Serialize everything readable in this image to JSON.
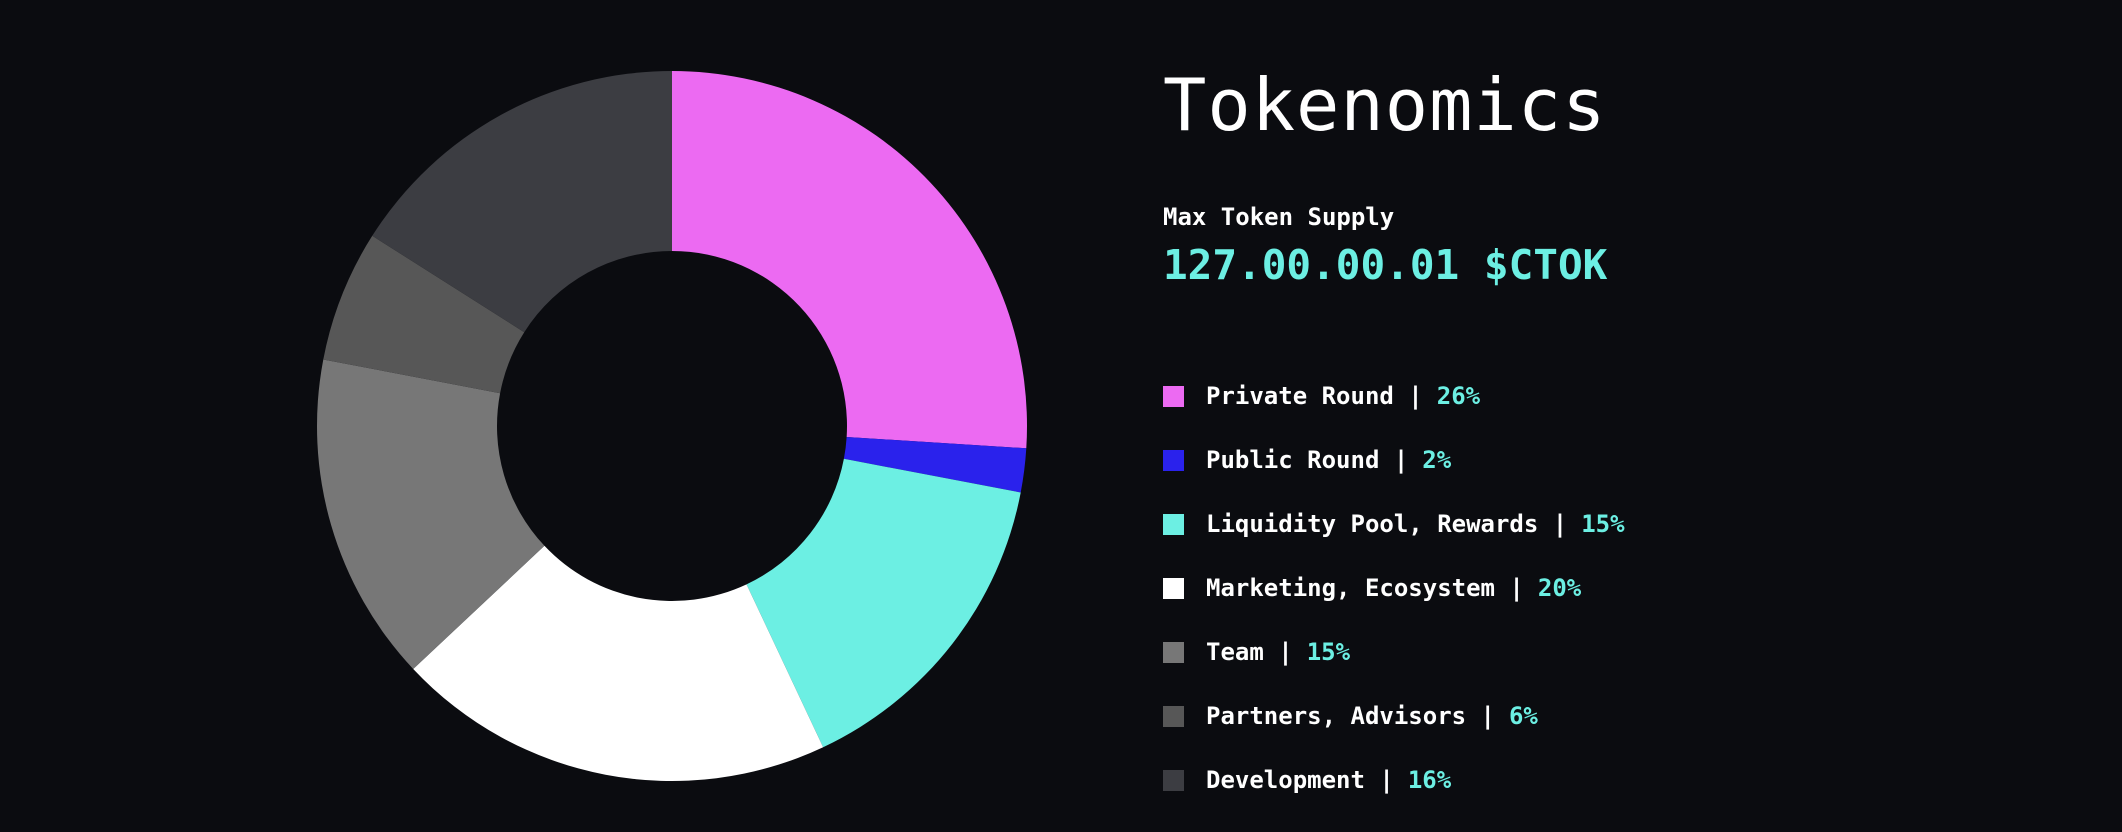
{
  "title": "Tokenomics",
  "supply": {
    "label": "Max Token Supply",
    "value": "127.00.00.01 $CTOK"
  },
  "colors": {
    "background": "#0b0c10",
    "accent": "#6cefe3"
  },
  "chart_data": {
    "type": "pie",
    "donut": true,
    "slices": [
      {
        "name": "Private Round",
        "value": 26,
        "color": "#ec6af2"
      },
      {
        "name": "Public Round",
        "value": 2,
        "color": "#2a22ec"
      },
      {
        "name": "Liquidity Pool, Rewards",
        "value": 15,
        "color": "#6cefe3"
      },
      {
        "name": "Marketing, Ecosystem",
        "value": 20,
        "color": "#ffffff"
      },
      {
        "name": "Team",
        "value": 15,
        "color": "#777777"
      },
      {
        "name": "Partners, Advisors",
        "value": 6,
        "color": "#575757"
      },
      {
        "name": "Development",
        "value": 16,
        "color": "#3c3d42"
      }
    ]
  }
}
